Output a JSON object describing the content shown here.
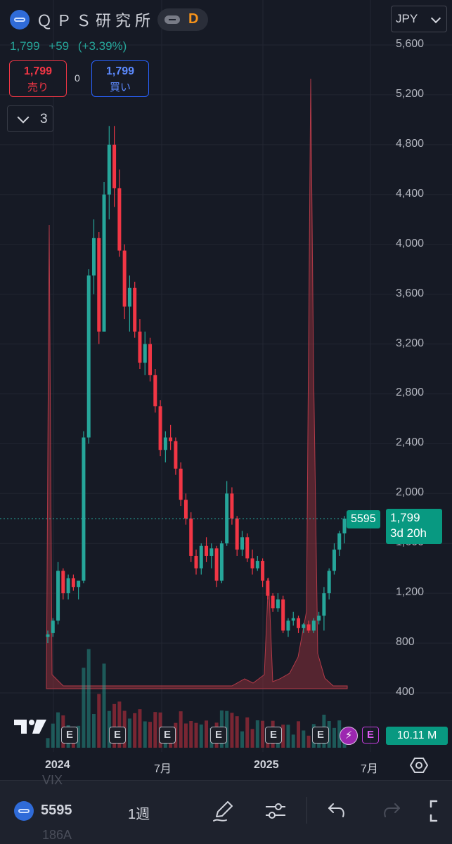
{
  "header": {
    "symbol_name": "ＱＰＳ研究所",
    "interval_badge": "D",
    "currency": "JPY",
    "last_price": "1,799",
    "change": "+59",
    "change_percent": "(+3.39%)"
  },
  "trade": {
    "sell_price": "1,799",
    "sell_label": "売り",
    "spread": "0",
    "buy_price": "1,799",
    "buy_label": "買い"
  },
  "indicators": {
    "count": "3"
  },
  "price_axis": {
    "ticks": [
      "5,600",
      "5,200",
      "4,800",
      "4,400",
      "4,000",
      "3,600",
      "3,200",
      "2,800",
      "2,400",
      "2,000",
      "1,600",
      "1,200",
      "800",
      "400"
    ],
    "tick_values": [
      5600,
      5200,
      4800,
      4400,
      4000,
      3600,
      3200,
      2800,
      2400,
      2000,
      1600,
      1200,
      800,
      400
    ]
  },
  "badges": {
    "symbol_tag": "5595",
    "last_price": "1,799",
    "countdown": "3d 20h",
    "volume": "10.11 M"
  },
  "events": {
    "earnings_label": "E",
    "split_icon": "lightning-icon"
  },
  "time_axis": {
    "labels": [
      {
        "text": "2024",
        "bold": true
      },
      {
        "text": "7月",
        "bold": false
      },
      {
        "text": "2025",
        "bold": true
      },
      {
        "text": "7月",
        "bold": false
      }
    ]
  },
  "background_text": {
    "top": "VIX",
    "bottom": "186A"
  },
  "toolbar": {
    "symbol": "5595",
    "interval": "1週",
    "draw_icon": "pen-icon",
    "settings_icon": "sliders-icon",
    "undo_icon": "undo-icon",
    "redo_icon": "redo-icon",
    "fullscreen_icon": "fullscreen-icon"
  },
  "colors": {
    "up": "#26a69a",
    "down": "#f23645",
    "background": "#161a25",
    "buy": "#2962ff",
    "earnings_future": "#c13ddb",
    "overlay_area": "#8b2f3a"
  },
  "chart_data": {
    "type": "candlestick",
    "interval": "D",
    "currency": "JPY",
    "last": 1799,
    "ylim": [
      400,
      5600
    ],
    "ohlc_weekly_approx": [
      [
        850,
        900,
        800,
        870
      ],
      [
        880,
        1000,
        850,
        980
      ],
      [
        980,
        1450,
        950,
        1380
      ],
      [
        1380,
        1400,
        1150,
        1200
      ],
      [
        1200,
        1350,
        1150,
        1320
      ],
      [
        1320,
        1350,
        1220,
        1250
      ],
      [
        1250,
        1300,
        1150,
        1300
      ],
      [
        1300,
        2500,
        1280,
        2450
      ],
      [
        2450,
        3800,
        2400,
        3750
      ],
      [
        3750,
        4200,
        3600,
        4050
      ],
      [
        4050,
        4100,
        3200,
        3300
      ],
      [
        3300,
        4500,
        3300,
        4400
      ],
      [
        4400,
        4950,
        4200,
        4800
      ],
      [
        4800,
        4950,
        4300,
        4450
      ],
      [
        4450,
        4600,
        3900,
        3950
      ],
      [
        3950,
        4000,
        3400,
        3500
      ],
      [
        3500,
        3750,
        3300,
        3650
      ],
      [
        3650,
        3700,
        3250,
        3300
      ],
      [
        3300,
        3400,
        3000,
        3050
      ],
      [
        3050,
        3300,
        2950,
        3200
      ],
      [
        3200,
        3250,
        2900,
        2950
      ],
      [
        2950,
        3000,
        2650,
        2700
      ],
      [
        2700,
        2750,
        2300,
        2350
      ],
      [
        2350,
        2500,
        2250,
        2450
      ],
      [
        2450,
        2550,
        2350,
        2420
      ],
      [
        2420,
        2450,
        2150,
        2200
      ],
      [
        2200,
        2250,
        1900,
        1950
      ],
      [
        1950,
        2000,
        1750,
        1800
      ],
      [
        1800,
        1850,
        1450,
        1500
      ],
      [
        1500,
        1550,
        1350,
        1400
      ],
      [
        1400,
        1600,
        1350,
        1580
      ],
      [
        1580,
        1650,
        1450,
        1500
      ],
      [
        1500,
        1600,
        1400,
        1560
      ],
      [
        1560,
        1580,
        1250,
        1300
      ],
      [
        1300,
        1620,
        1280,
        1600
      ],
      [
        1600,
        2100,
        1580,
        2000
      ],
      [
        2000,
        2050,
        1750,
        1800
      ],
      [
        1800,
        1820,
        1500,
        1550
      ],
      [
        1550,
        1700,
        1500,
        1650
      ],
      [
        1650,
        1680,
        1450,
        1480
      ],
      [
        1480,
        1550,
        1350,
        1400
      ],
      [
        1400,
        1500,
        1380,
        1460
      ],
      [
        1460,
        1480,
        1250,
        1300
      ],
      [
        1300,
        1320,
        1150,
        1180
      ],
      [
        1180,
        1200,
        1050,
        1080
      ],
      [
        1080,
        1200,
        1050,
        1150
      ],
      [
        1150,
        1180,
        880,
        900
      ],
      [
        900,
        1000,
        850,
        980
      ],
      [
        980,
        1050,
        940,
        1000
      ],
      [
        1000,
        1020,
        880,
        920
      ],
      [
        920,
        960,
        880,
        950
      ],
      [
        950,
        980,
        880,
        900
      ],
      [
        900,
        1000,
        880,
        980
      ],
      [
        980,
        1050,
        950,
        1020
      ],
      [
        1020,
        1250,
        900,
        1200
      ],
      [
        1200,
        1400,
        1150,
        1380
      ],
      [
        1380,
        1600,
        1350,
        1550
      ],
      [
        1550,
        1700,
        1500,
        1680
      ],
      [
        1680,
        1820,
        1600,
        1799
      ]
    ],
    "volume_last": "10.11 M",
    "x_labels": [
      "2024",
      "7月",
      "2025",
      "7月"
    ]
  }
}
